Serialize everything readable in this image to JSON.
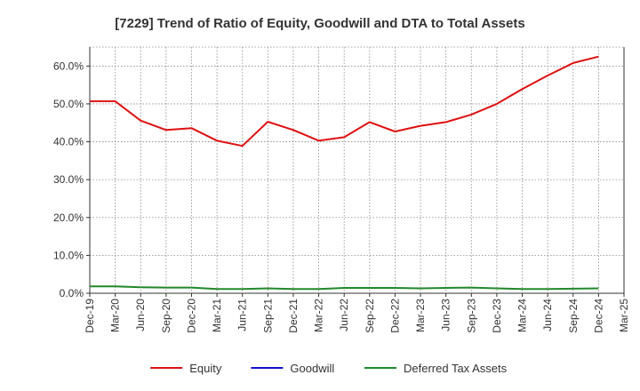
{
  "chart_data": {
    "type": "line",
    "title": "[7229]  Trend of Ratio of Equity, Goodwill and DTA to Total Assets",
    "xlabel": "",
    "ylabel": "",
    "ylim": [
      0,
      65
    ],
    "yticks": [
      0,
      10,
      20,
      30,
      40,
      50,
      60
    ],
    "ytick_labels": [
      "0.0%",
      "10.0%",
      "20.0%",
      "30.0%",
      "40.0%",
      "50.0%",
      "60.0%"
    ],
    "categories": [
      "Dec-19",
      "Mar-20",
      "Jun-20",
      "Sep-20",
      "Dec-20",
      "Mar-21",
      "Jun-21",
      "Sep-21",
      "Dec-21",
      "Mar-22",
      "Jun-22",
      "Sep-22",
      "Dec-22",
      "Mar-23",
      "Jun-23",
      "Sep-23",
      "Dec-23",
      "Mar-24",
      "Jun-24",
      "Sep-24",
      "Dec-24",
      "Mar-25"
    ],
    "grid": true,
    "legend_position": "bottom",
    "series": [
      {
        "name": "Equity",
        "color": "#dd1111",
        "values": [
          50.7,
          50.7,
          45.6,
          43.1,
          43.6,
          40.3,
          38.9,
          45.3,
          43.1,
          40.3,
          41.2,
          45.2,
          42.7,
          44.2,
          45.2,
          47.2,
          50.0,
          53.9,
          57.5,
          60.8,
          62.5,
          null
        ]
      },
      {
        "name": "Goodwill",
        "color": "#1111cc",
        "values": [
          null,
          null,
          null,
          null,
          null,
          null,
          null,
          null,
          null,
          null,
          null,
          null,
          null,
          null,
          null,
          null,
          null,
          null,
          null,
          null,
          null,
          null
        ]
      },
      {
        "name": "Deferred Tax Assets",
        "color": "#22882a",
        "values": [
          1.8,
          1.8,
          1.6,
          1.5,
          1.5,
          1.1,
          1.1,
          1.3,
          1.1,
          1.1,
          1.4,
          1.4,
          1.4,
          1.3,
          1.4,
          1.5,
          1.3,
          1.1,
          1.1,
          1.2,
          1.3,
          null
        ]
      }
    ]
  }
}
